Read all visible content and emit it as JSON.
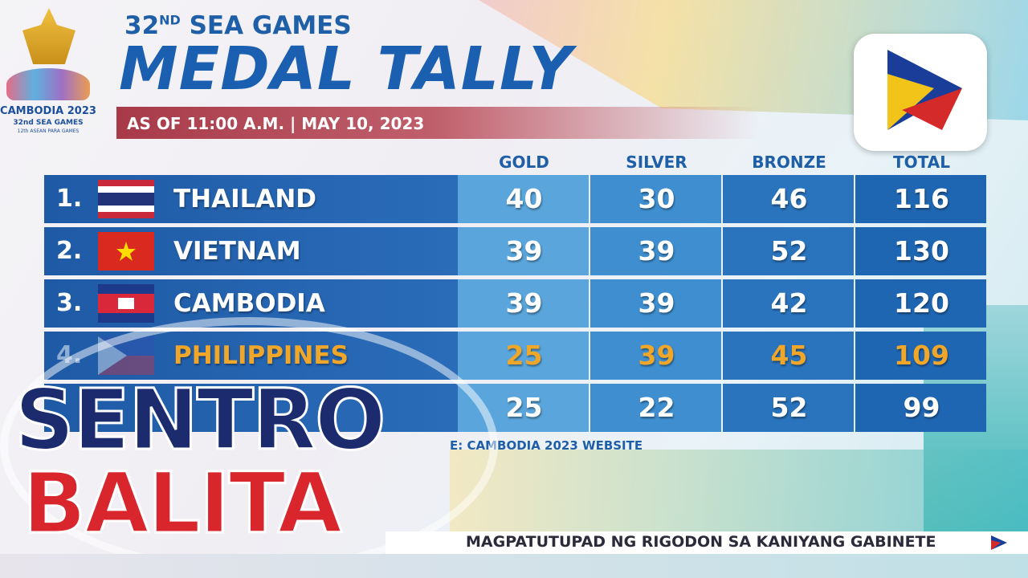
{
  "logo": {
    "title": "CAMBODIA 2023",
    "subtitle": "32nd SEA GAMES",
    "small": "12th ASEAN PARA GAMES"
  },
  "header": {
    "edition_number": "32",
    "edition_suffix": "ND",
    "edition_name": "SEA GAMES",
    "title": "MEDAL TALLY",
    "as_of": "AS OF 11:00 A.M. | MAY 10, 2023"
  },
  "table": {
    "columns": [
      "GOLD",
      "SILVER",
      "BRONZE",
      "TOTAL"
    ],
    "rows": [
      {
        "rank": "1.",
        "country": "THAILAND",
        "medals": [
          40,
          30,
          46,
          116
        ]
      },
      {
        "rank": "2.",
        "country": "VIETNAM",
        "medals": [
          39,
          39,
          52,
          130
        ]
      },
      {
        "rank": "3.",
        "country": "CAMBODIA",
        "medals": [
          39,
          39,
          42,
          120
        ]
      },
      {
        "rank": "4.",
        "country": "PHILIPPINES",
        "medals": [
          25,
          39,
          45,
          109
        ]
      },
      {
        "medals": [
          25,
          22,
          52,
          99
        ]
      }
    ],
    "source": "E: CAMBODIA 2023 WEBSITE"
  },
  "brand": {
    "line1": "SENTRO",
    "line2": "BALITA"
  },
  "ticker": {
    "text": "MAGPATUTUPAD NG RIGODON SA KANIYANG GABINETE"
  }
}
